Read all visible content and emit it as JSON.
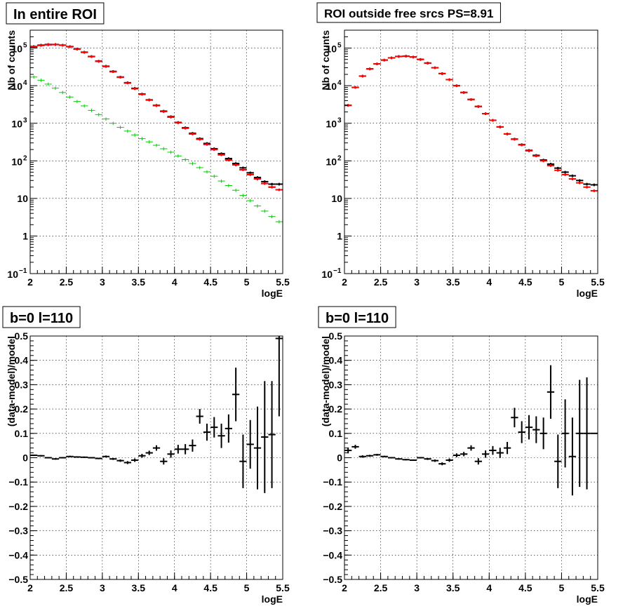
{
  "chart_data": [
    {
      "type": "scatter",
      "title": "In entire ROI",
      "xlabel": "logE",
      "ylabel": "Nb of counts",
      "xlim": [
        2,
        5.5
      ],
      "ylim": [
        0.1,
        300000
      ],
      "yscale": "log",
      "grid": true,
      "x_ticks": [
        "2",
        "2.5",
        "3",
        "3.5",
        "4",
        "4.5",
        "5",
        "5.5"
      ],
      "y_ticks": [
        {
          "value": 0.1,
          "base": "10",
          "exp": "−1"
        },
        {
          "value": 1,
          "label": "1"
        },
        {
          "value": 10,
          "label": "10"
        },
        {
          "value": 100,
          "base": "10",
          "exp": "2"
        },
        {
          "value": 1000,
          "base": "10",
          "exp": "3"
        },
        {
          "value": 10000,
          "base": "10",
          "exp": "4"
        },
        {
          "value": 100000,
          "base": "10",
          "exp": "5"
        }
      ],
      "x": [
        2.05,
        2.15,
        2.25,
        2.35,
        2.45,
        2.55,
        2.65,
        2.75,
        2.85,
        2.95,
        3.05,
        3.15,
        3.25,
        3.35,
        3.45,
        3.55,
        3.65,
        3.75,
        3.85,
        3.95,
        4.05,
        4.15,
        4.25,
        4.35,
        4.45,
        4.55,
        4.65,
        4.75,
        4.85,
        4.95,
        5.05,
        5.15,
        5.25,
        5.35,
        5.45
      ],
      "series": [
        {
          "color": "#000000",
          "width": 2,
          "values": [
            110000,
            120000,
            125000,
            125000,
            120000,
            110000,
            95000,
            78000,
            60000,
            45000,
            33000,
            24000,
            17000,
            12000,
            8500,
            6000,
            4200,
            3000,
            2100,
            1500,
            1050,
            760,
            540,
            390,
            290,
            210,
            155,
            115,
            85,
            65,
            48,
            36,
            28,
            24,
            24
          ],
          "err_rel": 0.08
        },
        {
          "color": "#0000cc",
          "width": 2,
          "values": [
            108000,
            118000,
            123000,
            124000,
            119000,
            109000,
            94000,
            77000,
            59500,
            44500,
            32500,
            23600,
            16800,
            11800,
            8300,
            5900,
            4150,
            2950,
            2050,
            1460,
            1030,
            740,
            520,
            375,
            275,
            200,
            145,
            105,
            78,
            58,
            43,
            33,
            25,
            20,
            17
          ],
          "err_rel": 0
        },
        {
          "color": "#ff0000",
          "width": 2,
          "values": [
            108000,
            118000,
            123000,
            124000,
            119000,
            109000,
            94000,
            77000,
            59500,
            44500,
            32500,
            23600,
            16800,
            11800,
            8300,
            5900,
            4150,
            2950,
            2050,
            1460,
            1030,
            740,
            520,
            375,
            275,
            200,
            145,
            105,
            78,
            58,
            43,
            33,
            25,
            20,
            17
          ],
          "err_rel": 0.08
        },
        {
          "color": "#00cc00",
          "width": 1,
          "values": [
            17000,
            14000,
            11000,
            8600,
            6600,
            5000,
            3800,
            2900,
            2200,
            1700,
            1300,
            1000,
            780,
            620,
            490,
            390,
            320,
            260,
            210,
            170,
            135,
            108,
            85,
            66,
            51,
            39,
            29,
            22,
            16.5,
            12,
            8.7,
            6.3,
            4.6,
            3.3,
            2.4
          ],
          "err_rel": 0.1
        }
      ]
    },
    {
      "type": "scatter",
      "title": "ROI outside free srcs PS=8.91",
      "xlabel": "logE",
      "ylabel": "Nb of counts",
      "xlim": [
        2,
        5.5
      ],
      "ylim": [
        0.1,
        300000
      ],
      "yscale": "log",
      "grid": true,
      "x_ticks": [
        "2",
        "2.5",
        "3",
        "3.5",
        "4",
        "4.5",
        "5",
        "5.5"
      ],
      "y_ticks": [
        {
          "value": 0.1,
          "base": "10",
          "exp": "−1"
        },
        {
          "value": 1,
          "label": "1"
        },
        {
          "value": 10,
          "label": "10"
        },
        {
          "value": 100,
          "base": "10",
          "exp": "2"
        },
        {
          "value": 1000,
          "base": "10",
          "exp": "3"
        },
        {
          "value": 10000,
          "base": "10",
          "exp": "4"
        },
        {
          "value": 100000,
          "base": "10",
          "exp": "5"
        }
      ],
      "x": [
        2.05,
        2.15,
        2.25,
        2.35,
        2.45,
        2.55,
        2.65,
        2.75,
        2.85,
        2.95,
        3.05,
        3.15,
        3.25,
        3.35,
        3.45,
        3.55,
        3.65,
        3.75,
        3.85,
        3.95,
        4.05,
        4.15,
        4.25,
        4.35,
        4.45,
        4.55,
        4.65,
        4.75,
        4.85,
        4.95,
        5.05,
        5.15,
        5.25,
        5.35,
        5.45
      ],
      "series": [
        {
          "color": "#000000",
          "width": 2,
          "values": [
            3000,
            9000,
            18000,
            28000,
            38000,
            48000,
            55000,
            60000,
            61000,
            58000,
            50000,
            40000,
            30000,
            21000,
            14500,
            10000,
            6600,
            4300,
            2800,
            1800,
            1200,
            800,
            520,
            380,
            270,
            190,
            140,
            105,
            82,
            64,
            50,
            40,
            30,
            24,
            23
          ],
          "err_rel": 0.08
        },
        {
          "color": "#ff0000",
          "width": 2,
          "values": [
            3000,
            9000,
            18000,
            28000,
            38000,
            48000,
            55000,
            60000,
            61000,
            58000,
            50000,
            40000,
            30000,
            21000,
            14500,
            10000,
            6600,
            4300,
            2800,
            1800,
            1200,
            800,
            520,
            375,
            265,
            185,
            135,
            100,
            75,
            56,
            43,
            33,
            26,
            20,
            16
          ],
          "err_rel": 0.08
        }
      ]
    },
    {
      "type": "scatter",
      "title": "b=0 l=110",
      "xlabel": "logE",
      "ylabel": "(data-model)/model",
      "xlim": [
        2,
        5.5
      ],
      "ylim": [
        -0.5,
        0.5
      ],
      "yscale": "linear",
      "grid": true,
      "x_ticks": [
        "2",
        "2.5",
        "3",
        "3.5",
        "4",
        "4.5",
        "5",
        "5.5"
      ],
      "y_ticks": [
        {
          "value": -0.5,
          "label": "−0.5"
        },
        {
          "value": -0.4,
          "label": "−0.4"
        },
        {
          "value": -0.3,
          "label": "−0.3"
        },
        {
          "value": -0.2,
          "label": "−0.2"
        },
        {
          "value": -0.1,
          "label": "−0.1"
        },
        {
          "value": 0,
          "label": "0"
        },
        {
          "value": 0.1,
          "label": "0.1"
        },
        {
          "value": 0.2,
          "label": "0.2"
        },
        {
          "value": 0.3,
          "label": "0.3"
        },
        {
          "value": 0.4,
          "label": "0.4"
        },
        {
          "value": 0.5,
          "label": "0.5"
        }
      ],
      "x": [
        2.05,
        2.15,
        2.25,
        2.35,
        2.45,
        2.55,
        2.65,
        2.75,
        2.85,
        2.95,
        3.05,
        3.15,
        3.25,
        3.35,
        3.45,
        3.55,
        3.65,
        3.75,
        3.85,
        3.95,
        4.05,
        4.15,
        4.25,
        4.35,
        4.45,
        4.55,
        4.65,
        4.75,
        4.85,
        4.95,
        5.05,
        5.15,
        5.25,
        5.35,
        5.45
      ],
      "series": [
        {
          "color": "#000000",
          "width": 2,
          "values": [
            0.01,
            0.008,
            0.0,
            -0.005,
            0.0,
            0.005,
            0.003,
            0.002,
            0.0,
            -0.003,
            0.005,
            -0.005,
            -0.012,
            -0.02,
            -0.01,
            0.008,
            0.02,
            0.04,
            -0.015,
            0.015,
            0.035,
            0.035,
            0.05,
            0.17,
            0.105,
            0.125,
            0.09,
            0.12,
            0.26,
            -0.015,
            0.055,
            0.04,
            0.085,
            0.095,
            0.49
          ],
          "errors": [
            0.003,
            0.003,
            0.003,
            0.003,
            0.003,
            0.003,
            0.003,
            0.003,
            0.003,
            0.003,
            0.004,
            0.004,
            0.005,
            0.006,
            0.007,
            0.008,
            0.009,
            0.011,
            0.013,
            0.015,
            0.018,
            0.021,
            0.025,
            0.03,
            0.035,
            0.042,
            0.05,
            0.058,
            0.11,
            0.11,
            0.1,
            0.17,
            0.23,
            0.22,
            0.32
          ]
        }
      ]
    },
    {
      "type": "scatter",
      "title": "b=0 l=110",
      "xlabel": "logE",
      "ylabel": "(data-model)/model",
      "xlim": [
        2,
        5.5
      ],
      "ylim": [
        -0.5,
        0.5
      ],
      "yscale": "linear",
      "grid": true,
      "x_ticks": [
        "2",
        "2.5",
        "3",
        "3.5",
        "4",
        "4.5",
        "5",
        "5.5"
      ],
      "y_ticks": [
        {
          "value": -0.5,
          "label": "−0.5"
        },
        {
          "value": -0.4,
          "label": "−0.4"
        },
        {
          "value": -0.3,
          "label": "−0.3"
        },
        {
          "value": -0.2,
          "label": "−0.2"
        },
        {
          "value": -0.1,
          "label": "−0.1"
        },
        {
          "value": 0,
          "label": "0"
        },
        {
          "value": 0.1,
          "label": "0.1"
        },
        {
          "value": 0.2,
          "label": "0.2"
        },
        {
          "value": 0.3,
          "label": "0.3"
        },
        {
          "value": 0.4,
          "label": "0.4"
        },
        {
          "value": 0.5,
          "label": "0.5"
        }
      ],
      "x": [
        2.05,
        2.15,
        2.25,
        2.35,
        2.45,
        2.55,
        2.65,
        2.75,
        2.85,
        2.95,
        3.05,
        3.15,
        3.25,
        3.35,
        3.45,
        3.55,
        3.65,
        3.75,
        3.85,
        3.95,
        4.05,
        4.15,
        4.25,
        4.35,
        4.45,
        4.55,
        4.65,
        4.75,
        4.85,
        4.95,
        5.05,
        5.15,
        5.25,
        5.35,
        5.45
      ],
      "series": [
        {
          "color": "#000000",
          "width": 2,
          "values": [
            0.03,
            0.045,
            0.005,
            0.008,
            0.012,
            0.005,
            0.0,
            -0.005,
            -0.008,
            -0.01,
            0.0,
            -0.005,
            -0.012,
            -0.025,
            -0.01,
            0.01,
            0.015,
            0.04,
            -0.015,
            0.015,
            0.03,
            0.02,
            0.04,
            0.165,
            0.105,
            0.125,
            0.115,
            0.1,
            0.27,
            -0.015,
            0.1,
            0.005,
            0.1,
            0.1,
            0.1
          ],
          "errors": [
            0.012,
            0.008,
            0.005,
            0.004,
            0.004,
            0.003,
            0.003,
            0.003,
            0.003,
            0.003,
            0.003,
            0.004,
            0.005,
            0.006,
            0.007,
            0.008,
            0.009,
            0.011,
            0.013,
            0.015,
            0.018,
            0.021,
            0.025,
            0.04,
            0.045,
            0.05,
            0.055,
            0.065,
            0.11,
            0.11,
            0.14,
            0.16,
            0.22,
            0.23,
            0.0
          ]
        }
      ]
    }
  ]
}
